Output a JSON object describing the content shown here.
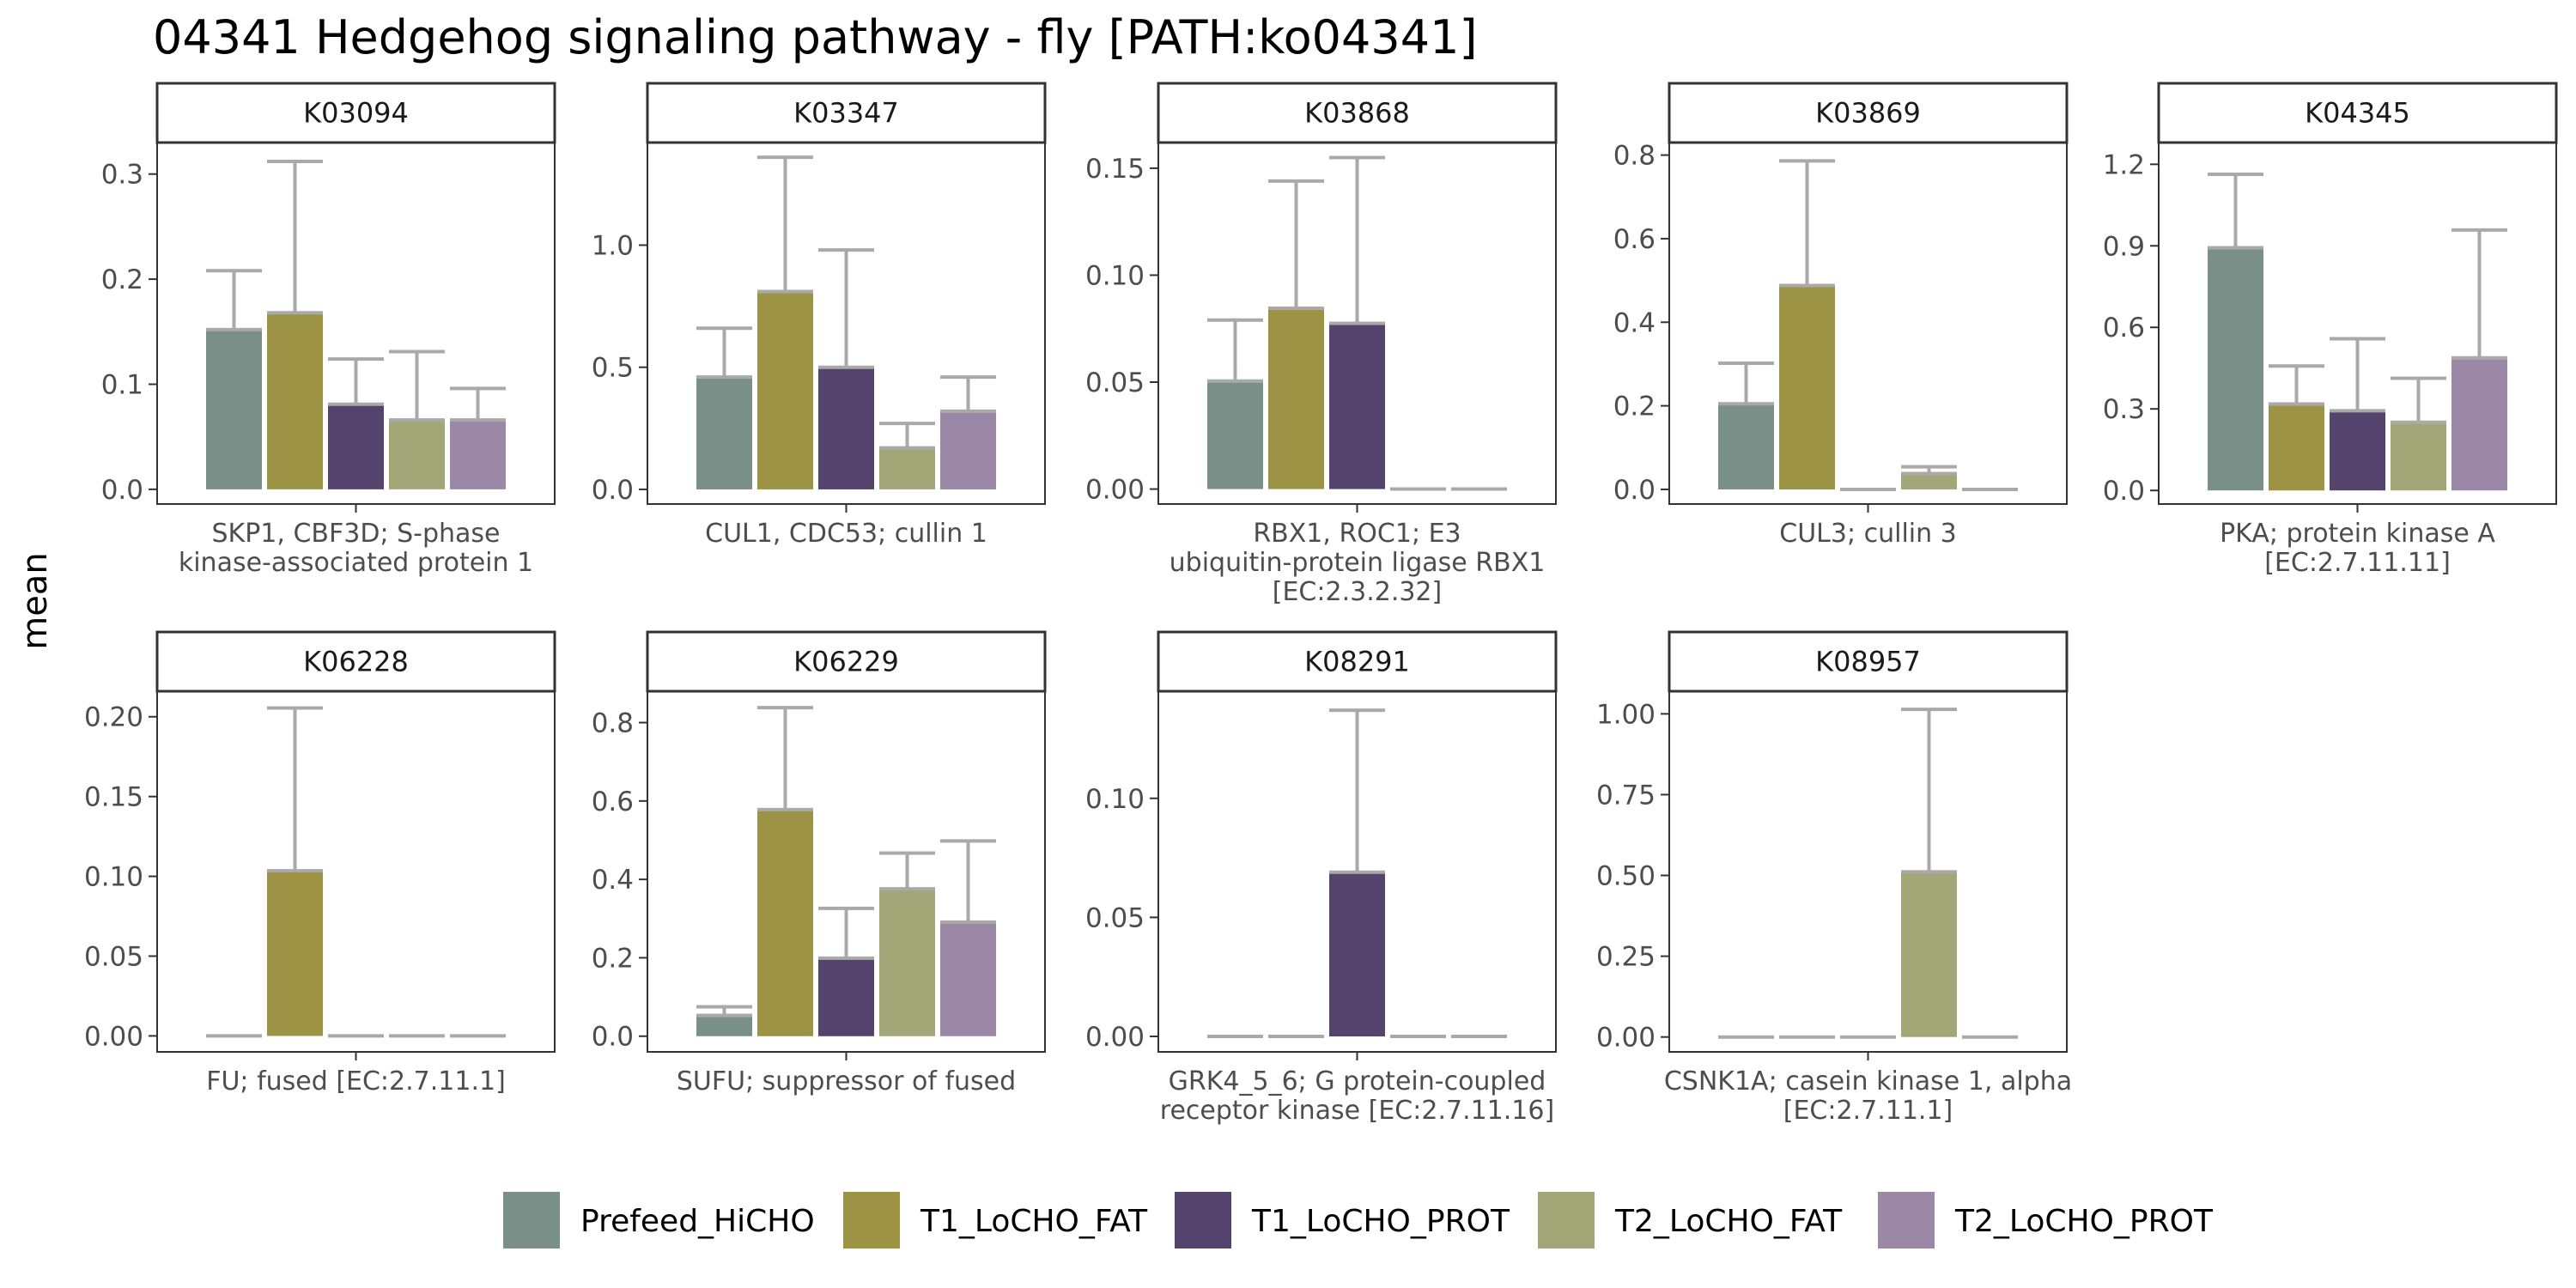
{
  "title": "04341 Hedgehog signaling pathway - fly [PATH:ko04341]",
  "ylabel": "mean",
  "chart_data": {
    "type": "bar",
    "series_names": [
      "Prefeed_HiCHO",
      "T1_LoCHO_FAT",
      "T1_LoCHO_PROT",
      "T2_LoCHO_FAT",
      "T2_LoCHO_PROT"
    ],
    "colors": [
      "#7a8f87",
      "#9c9444",
      "#54436d",
      "#a3a676",
      "#9b87a6"
    ],
    "error_color": "#a9a9a9",
    "panels": [
      {
        "id": "K03094",
        "xlabel": [
          "SKP1, CBF3D; S-phase",
          "kinase-associated protein 1"
        ],
        "ylim": [
          -0.014,
          0.33
        ],
        "ticks": [
          "0.0",
          "0.1",
          "0.2",
          "0.3"
        ],
        "tick_values": [
          0,
          0.1,
          0.2,
          0.3
        ],
        "means": [
          0.152,
          0.168,
          0.081,
          0.066,
          0.066
        ],
        "upper": [
          0.208,
          0.312,
          0.124,
          0.131,
          0.096
        ]
      },
      {
        "id": "K03347",
        "xlabel": [
          "CUL1, CDC53; cullin 1"
        ],
        "ylim": [
          -0.06,
          1.42
        ],
        "ticks": [
          "0.0",
          "0.5",
          "1.0"
        ],
        "tick_values": [
          0,
          0.5,
          1.0
        ],
        "means": [
          0.46,
          0.81,
          0.5,
          0.17,
          0.32
        ],
        "upper": [
          0.66,
          1.36,
          0.98,
          0.27,
          0.46
        ]
      },
      {
        "id": "K03868",
        "xlabel": [
          "RBX1, ROC1; E3",
          "ubiquitin-protein ligase RBX1",
          "[EC:2.3.2.32]"
        ],
        "ylim": [
          -0.007,
          0.162
        ],
        "ticks": [
          "0.00",
          "0.05",
          "0.10",
          "0.15"
        ],
        "tick_values": [
          0,
          0.05,
          0.1,
          0.15
        ],
        "means": [
          0.0505,
          0.0845,
          0.0775,
          0,
          0
        ],
        "upper": [
          0.079,
          0.144,
          0.155,
          0,
          0
        ]
      },
      {
        "id": "K03869",
        "xlabel": [
          "CUL3; cullin 3"
        ],
        "ylim": [
          -0.035,
          0.83
        ],
        "ticks": [
          "0.0",
          "0.2",
          "0.4",
          "0.6",
          "0.8"
        ],
        "tick_values": [
          0,
          0.2,
          0.4,
          0.6,
          0.8
        ],
        "means": [
          0.205,
          0.488,
          0,
          0.038,
          0
        ],
        "upper": [
          0.302,
          0.786,
          0,
          0.054,
          0
        ]
      },
      {
        "id": "K04345",
        "xlabel": [
          "PKA; protein kinase A",
          "[EC:2.7.11.11]"
        ],
        "ylim": [
          -0.05,
          1.28
        ],
        "ticks": [
          "0.0",
          "0.3",
          "0.6",
          "0.9",
          "1.2"
        ],
        "tick_values": [
          0,
          0.3,
          0.6,
          0.9,
          1.2
        ],
        "means": [
          0.893,
          0.318,
          0.293,
          0.251,
          0.488
        ],
        "upper": [
          1.163,
          0.458,
          0.558,
          0.413,
          0.958
        ]
      },
      {
        "id": "K06228",
        "xlabel": [
          "FU; fused [EC:2.7.11.1]"
        ],
        "ylim": [
          -0.01,
          0.216
        ],
        "ticks": [
          "0.00",
          "0.05",
          "0.10",
          "0.15",
          "0.20"
        ],
        "tick_values": [
          0,
          0.05,
          0.1,
          0.15,
          0.2
        ],
        "means": [
          0,
          0.1035,
          0,
          0,
          0
        ],
        "upper": [
          0,
          0.2055,
          0,
          0,
          0
        ]
      },
      {
        "id": "K06229",
        "xlabel": [
          "SUFU; suppressor of fused"
        ],
        "ylim": [
          -0.04,
          0.88
        ],
        "ticks": [
          "0.0",
          "0.2",
          "0.4",
          "0.6",
          "0.8"
        ],
        "tick_values": [
          0,
          0.2,
          0.4,
          0.6,
          0.8
        ],
        "means": [
          0.053,
          0.578,
          0.199,
          0.376,
          0.291
        ],
        "upper": [
          0.075,
          0.838,
          0.326,
          0.467,
          0.498
        ]
      },
      {
        "id": "K08291",
        "xlabel": [
          "GRK4_5_6; G protein-coupled",
          "receptor kinase [EC:2.7.11.16]"
        ],
        "ylim": [
          -0.0065,
          0.145
        ],
        "ticks": [
          "0.00",
          "0.05",
          "0.10"
        ],
        "tick_values": [
          0,
          0.05,
          0.1
        ],
        "means": [
          0,
          0,
          0.069,
          0,
          0
        ],
        "upper": [
          0,
          0,
          0.137,
          0,
          0
        ]
      },
      {
        "id": "K08957",
        "xlabel": [
          "CSNK1A; casein kinase 1, alpha",
          "[EC:2.7.11.1]"
        ],
        "ylim": [
          -0.046,
          1.07
        ],
        "ticks": [
          "0.00",
          "0.25",
          "0.50",
          "0.75",
          "1.00"
        ],
        "tick_values": [
          0,
          0.25,
          0.5,
          0.75,
          1.0
        ],
        "means": [
          0,
          0,
          0,
          0.511,
          0
        ],
        "upper": [
          0,
          0,
          0,
          1.014,
          0
        ]
      }
    ]
  }
}
